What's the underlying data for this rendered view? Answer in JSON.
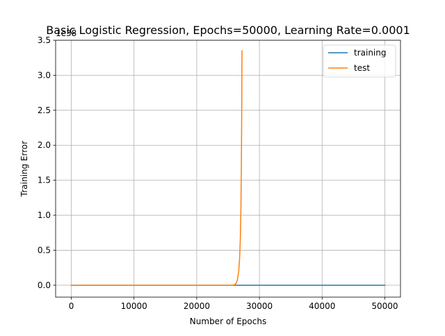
{
  "chart_data": {
    "type": "line",
    "title": "Basic Logistic Regression, Epochs=50000, Learning Rate=0.0001",
    "xlabel": "Number of Epochs",
    "ylabel": "Training Error",
    "offset_text": "1e38",
    "xlim": [
      -2500,
      52500
    ],
    "ylim": [
      -0.17,
      3.5
    ],
    "x_ticks": [
      0,
      10000,
      20000,
      30000,
      40000,
      50000
    ],
    "x_tick_labels": [
      "0",
      "10000",
      "20000",
      "30000",
      "40000",
      "50000"
    ],
    "y_ticks": [
      0.0,
      0.5,
      1.0,
      1.5,
      2.0,
      2.5,
      3.0,
      3.5
    ],
    "y_tick_labels": [
      "0.0",
      "0.5",
      "1.0",
      "1.5",
      "2.0",
      "2.5",
      "3.0",
      "3.5"
    ],
    "grid": true,
    "legend_position": "top-right",
    "series": [
      {
        "name": "training",
        "color": "#1f77b4",
        "x": [
          0,
          10000,
          20000,
          25000,
          30000,
          40000,
          50000
        ],
        "y": [
          0,
          0,
          0,
          0,
          0,
          0,
          0
        ]
      },
      {
        "name": "test",
        "color": "#ff7f0e",
        "x": [
          0,
          10000,
          20000,
          25000,
          25500,
          26000,
          26300,
          26500,
          26700,
          26850,
          26950,
          27050,
          27120,
          27180,
          27220
        ],
        "y": [
          0,
          0,
          0,
          0,
          0.0004,
          0.005,
          0.03,
          0.08,
          0.2,
          0.4,
          0.65,
          1.1,
          1.7,
          2.5,
          3.35
        ]
      }
    ]
  }
}
